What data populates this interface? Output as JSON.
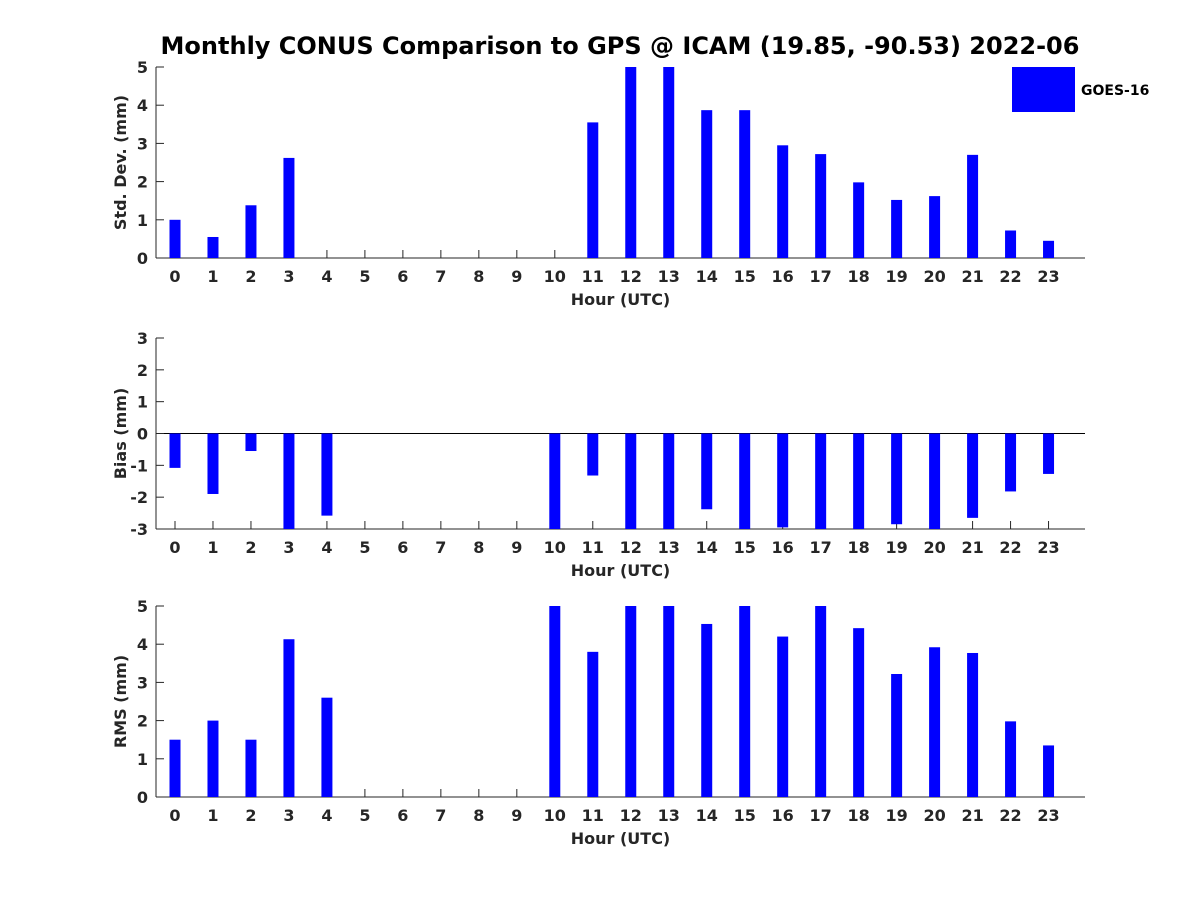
{
  "figure": {
    "title": "Monthly CONUS Comparison to GPS @ ICAM (19.85, -90.53) 2022-06",
    "legend_label": "GOES-16",
    "bar_color": "#0000ff",
    "legend_placement": "top-right"
  },
  "chart_data": [
    {
      "type": "bar",
      "xlabel": "Hour (UTC)",
      "ylabel": "Std. Dev. (mm)",
      "ylim": [
        0,
        5
      ],
      "yticks": [
        0,
        1,
        2,
        3,
        4,
        5
      ],
      "categories": [
        "0",
        "1",
        "2",
        "3",
        "4",
        "5",
        "6",
        "7",
        "8",
        "9",
        "10",
        "11",
        "12",
        "13",
        "14",
        "15",
        "16",
        "17",
        "18",
        "19",
        "20",
        "21",
        "22",
        "23"
      ],
      "series": [
        {
          "name": "GOES-16",
          "values": [
            1.0,
            0.55,
            1.38,
            2.62,
            null,
            null,
            null,
            null,
            null,
            null,
            null,
            3.55,
            5.0,
            5.0,
            3.87,
            3.87,
            2.95,
            2.72,
            1.98,
            1.52,
            1.62,
            2.7,
            0.72,
            0.45
          ]
        }
      ]
    },
    {
      "type": "bar",
      "xlabel": "Hour (UTC)",
      "ylabel": "Bias (mm)",
      "ylim": [
        -3,
        3
      ],
      "yticks": [
        -3,
        -2,
        -1,
        0,
        1,
        2,
        3
      ],
      "categories": [
        "0",
        "1",
        "2",
        "3",
        "4",
        "5",
        "6",
        "7",
        "8",
        "9",
        "10",
        "11",
        "12",
        "13",
        "14",
        "15",
        "16",
        "17",
        "18",
        "19",
        "20",
        "21",
        "22",
        "23"
      ],
      "series": [
        {
          "name": "GOES-16",
          "values": [
            -1.08,
            -1.9,
            -0.55,
            -3.0,
            -2.58,
            null,
            null,
            null,
            null,
            null,
            -3.0,
            -1.32,
            -3.0,
            -3.0,
            -2.38,
            -3.0,
            -2.95,
            -3.0,
            -3.0,
            -2.85,
            -3.0,
            -2.65,
            -1.82,
            -1.27
          ]
        }
      ]
    },
    {
      "type": "bar",
      "xlabel": "Hour (UTC)",
      "ylabel": "RMS (mm)",
      "ylim": [
        0,
        5
      ],
      "yticks": [
        0,
        1,
        2,
        3,
        4,
        5
      ],
      "categories": [
        "0",
        "1",
        "2",
        "3",
        "4",
        "5",
        "6",
        "7",
        "8",
        "9",
        "10",
        "11",
        "12",
        "13",
        "14",
        "15",
        "16",
        "17",
        "18",
        "19",
        "20",
        "21",
        "22",
        "23"
      ],
      "series": [
        {
          "name": "GOES-16",
          "values": [
            1.5,
            2.0,
            1.5,
            4.13,
            2.6,
            null,
            null,
            null,
            null,
            null,
            5.0,
            3.8,
            5.0,
            5.0,
            4.53,
            5.0,
            4.2,
            5.0,
            4.42,
            3.22,
            3.92,
            3.77,
            1.98,
            1.35
          ]
        }
      ]
    }
  ]
}
